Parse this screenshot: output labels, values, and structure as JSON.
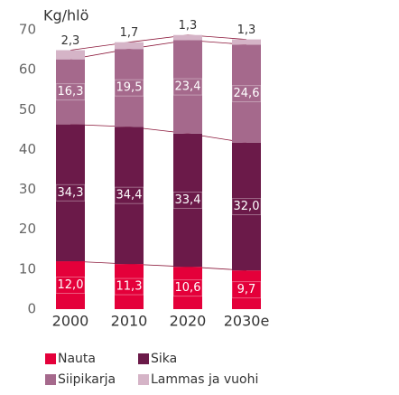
{
  "chart_data": {
    "type": "stacked_bar",
    "ylabel": "Kg/hlö",
    "categories": [
      "2000",
      "2010",
      "2020",
      "2030e"
    ],
    "series": [
      {
        "name": "Nauta",
        "color": "#e4003a",
        "values": [
          12.0,
          11.3,
          10.6,
          9.7
        ],
        "value_labels": [
          "12,0",
          "11,3",
          "10,6",
          "9,7"
        ]
      },
      {
        "name": "Sika",
        "color": "#6b1a49",
        "values": [
          34.3,
          34.4,
          33.4,
          32.0
        ],
        "value_labels": [
          "34,3",
          "34,4",
          "33,4",
          "32,0"
        ]
      },
      {
        "name": "Siipikarja",
        "color": "#a5698c",
        "values": [
          16.3,
          19.5,
          23.4,
          24.6
        ],
        "value_labels": [
          "16,3",
          "19,5",
          "23,4",
          "24,6"
        ]
      },
      {
        "name": "Lammas ja vuohi",
        "color": "#d5b4c7",
        "values": [
          2.3,
          1.7,
          1.3,
          1.3
        ],
        "value_labels": [
          "2,3",
          "1,7",
          "1,3",
          "1,3"
        ]
      }
    ],
    "ylim": [
      0,
      70
    ],
    "yticks": [
      0,
      10,
      20,
      30,
      40,
      50,
      60,
      70
    ]
  }
}
